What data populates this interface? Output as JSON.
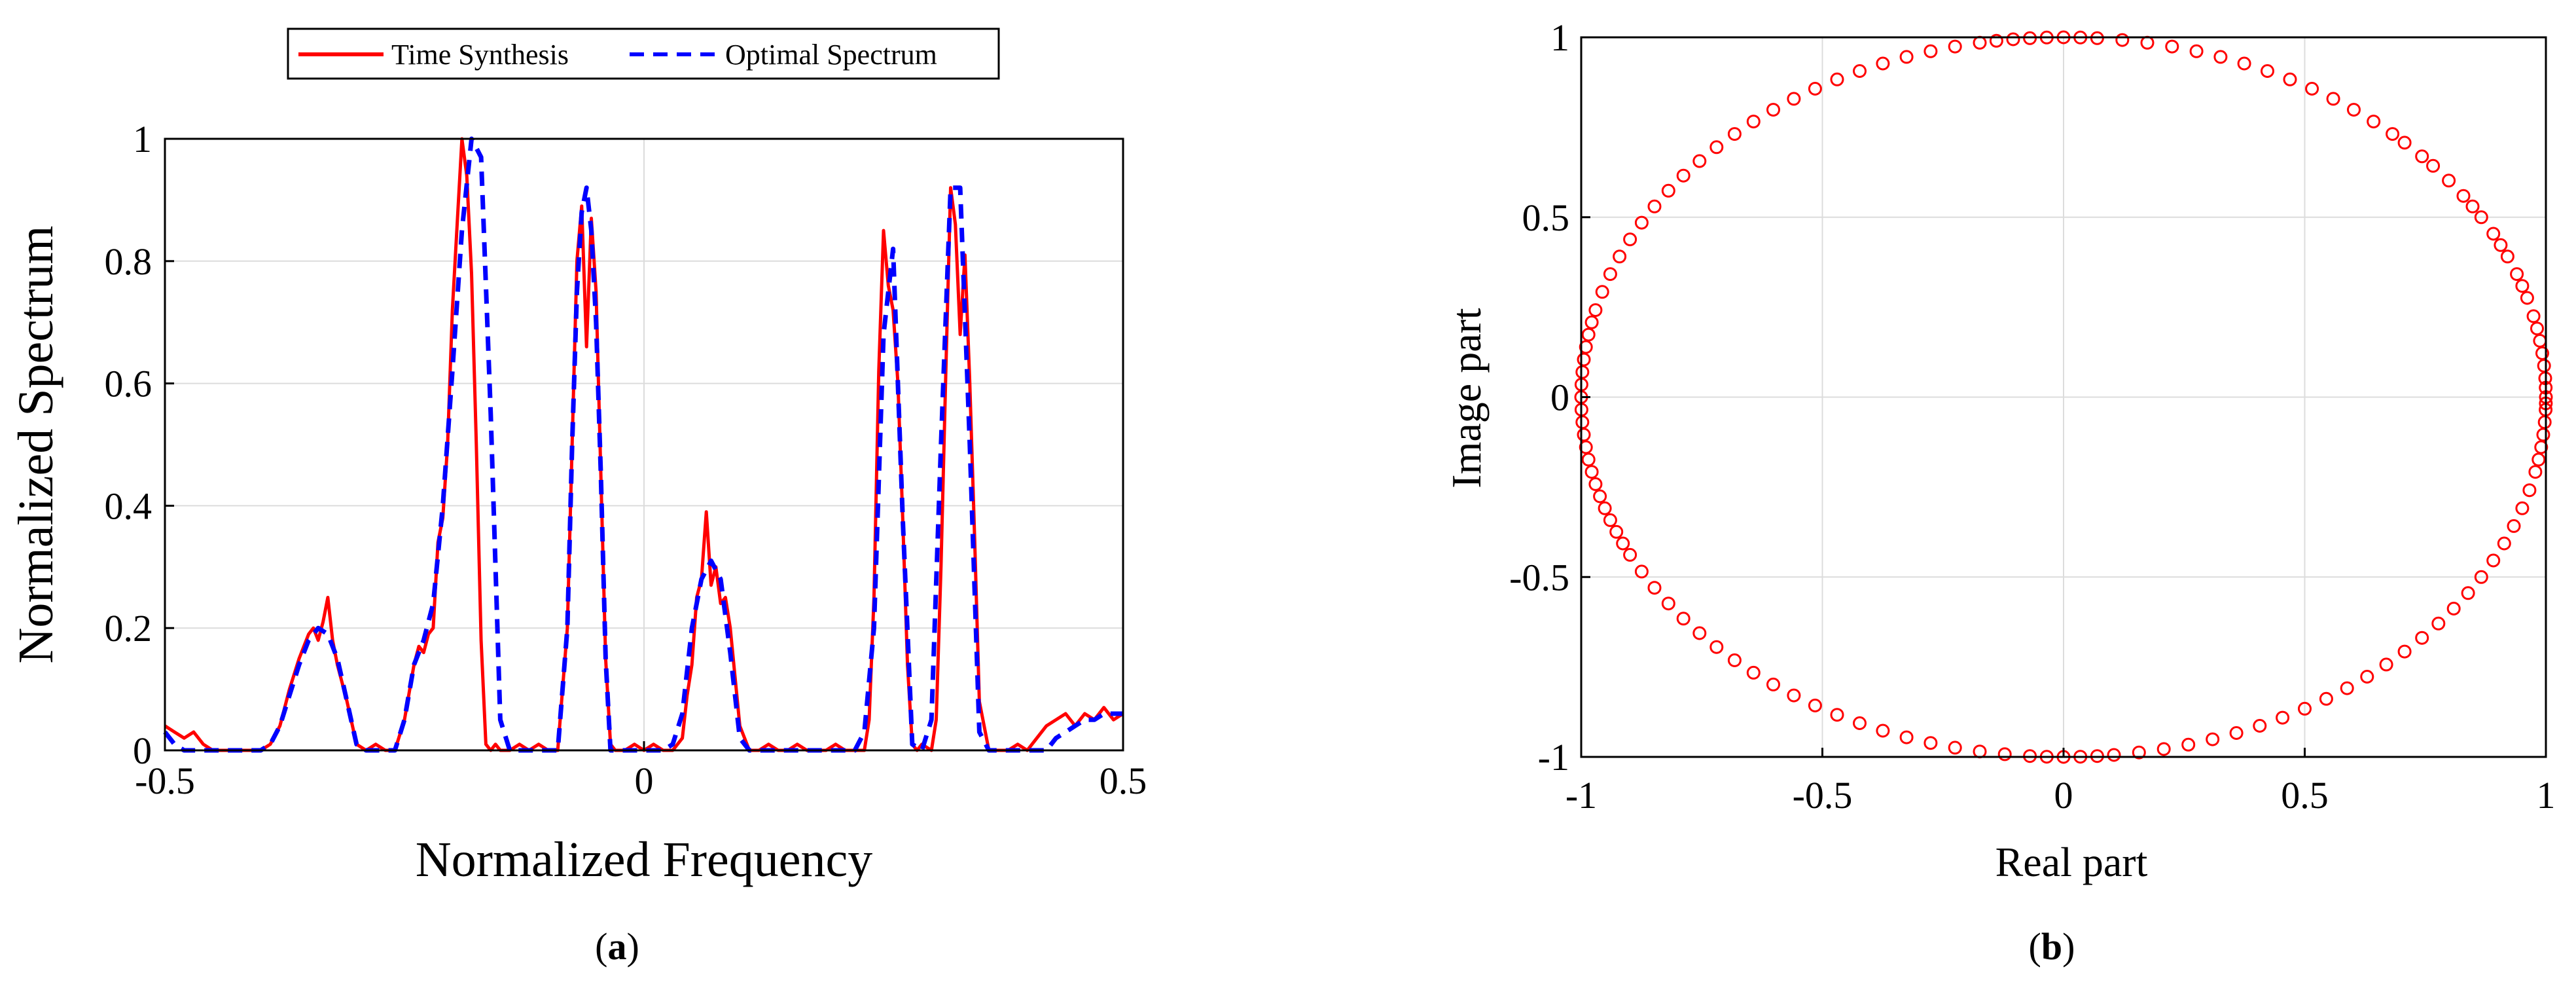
{
  "chart_data": [
    {
      "type": "line",
      "panel_label": "(a)",
      "xlabel": "Normalized Frequency",
      "ylabel": "Normalized Spectrum",
      "xlim": [
        -0.5,
        0.5
      ],
      "ylim": [
        0,
        1
      ],
      "xticks": [
        -0.5,
        0,
        0.5
      ],
      "xtick_labels": [
        "-0.5",
        "0",
        "0.5"
      ],
      "yticks": [
        0,
        0.2,
        0.4,
        0.6,
        0.8,
        1
      ],
      "ytick_labels": [
        "0",
        "0.2",
        "0.4",
        "0.6",
        "0.8",
        "1"
      ],
      "grid": true,
      "legend_position": "top-center-outside",
      "series": [
        {
          "name": "Time Synthesis",
          "color": "#ff0000",
          "style": "solid",
          "x": [
            -0.5,
            -0.49,
            -0.48,
            -0.47,
            -0.46,
            -0.45,
            -0.44,
            -0.43,
            -0.42,
            -0.41,
            -0.4,
            -0.39,
            -0.38,
            -0.37,
            -0.36,
            -0.355,
            -0.35,
            -0.345,
            -0.34,
            -0.335,
            -0.33,
            -0.325,
            -0.32,
            -0.31,
            -0.3,
            -0.29,
            -0.28,
            -0.27,
            -0.26,
            -0.25,
            -0.24,
            -0.235,
            -0.23,
            -0.225,
            -0.22,
            -0.215,
            -0.21,
            -0.205,
            -0.2,
            -0.195,
            -0.19,
            -0.185,
            -0.18,
            -0.175,
            -0.17,
            -0.165,
            -0.16,
            -0.155,
            -0.15,
            -0.14,
            -0.13,
            -0.12,
            -0.11,
            -0.1,
            -0.09,
            -0.08,
            -0.075,
            -0.07,
            -0.065,
            -0.06,
            -0.055,
            -0.05,
            -0.045,
            -0.04,
            -0.035,
            -0.03,
            -0.02,
            -0.01,
            0.0,
            0.01,
            0.02,
            0.03,
            0.04,
            0.045,
            0.05,
            0.055,
            0.06,
            0.065,
            0.07,
            0.075,
            0.08,
            0.085,
            0.09,
            0.095,
            0.1,
            0.11,
            0.12,
            0.13,
            0.14,
            0.15,
            0.16,
            0.17,
            0.18,
            0.19,
            0.2,
            0.21,
            0.22,
            0.23,
            0.235,
            0.24,
            0.245,
            0.25,
            0.255,
            0.26,
            0.265,
            0.27,
            0.275,
            0.28,
            0.285,
            0.29,
            0.3,
            0.305,
            0.31,
            0.315,
            0.32,
            0.325,
            0.33,
            0.335,
            0.34,
            0.345,
            0.35,
            0.36,
            0.37,
            0.38,
            0.39,
            0.4,
            0.41,
            0.42,
            0.43,
            0.44,
            0.45,
            0.46,
            0.47,
            0.48,
            0.49,
            0.5
          ],
          "y": [
            0.04,
            0.03,
            0.02,
            0.03,
            0.01,
            0.0,
            0.0,
            0.0,
            0.0,
            0.0,
            0.0,
            0.01,
            0.04,
            0.1,
            0.15,
            0.17,
            0.19,
            0.2,
            0.18,
            0.21,
            0.25,
            0.18,
            0.14,
            0.08,
            0.01,
            0.0,
            0.01,
            0.0,
            0.0,
            0.05,
            0.14,
            0.17,
            0.16,
            0.19,
            0.2,
            0.34,
            0.38,
            0.5,
            0.72,
            0.86,
            1.0,
            0.94,
            0.78,
            0.5,
            0.18,
            0.01,
            0.0,
            0.01,
            0.0,
            0.0,
            0.01,
            0.0,
            0.01,
            0.0,
            0.0,
            0.2,
            0.5,
            0.8,
            0.89,
            0.66,
            0.87,
            0.75,
            0.45,
            0.15,
            0.01,
            0.0,
            0.0,
            0.01,
            0.0,
            0.01,
            0.0,
            0.0,
            0.02,
            0.09,
            0.14,
            0.25,
            0.28,
            0.39,
            0.27,
            0.3,
            0.24,
            0.25,
            0.2,
            0.12,
            0.04,
            0.0,
            0.0,
            0.01,
            0.0,
            0.0,
            0.01,
            0.0,
            0.0,
            0.0,
            0.01,
            0.0,
            0.0,
            0.0,
            0.05,
            0.25,
            0.62,
            0.85,
            0.76,
            0.72,
            0.6,
            0.38,
            0.14,
            0.01,
            0.0,
            0.01,
            0.0,
            0.05,
            0.3,
            0.62,
            0.92,
            0.86,
            0.68,
            0.81,
            0.6,
            0.35,
            0.08,
            0.0,
            0.0,
            0.0,
            0.01,
            0.0,
            0.02,
            0.04,
            0.05,
            0.06,
            0.04,
            0.06,
            0.05,
            0.07,
            0.05,
            0.06
          ]
        },
        {
          "name": "Optimal Spectrum",
          "color": "#0000ff",
          "style": "dashed",
          "x": [
            -0.5,
            -0.49,
            -0.48,
            -0.47,
            -0.46,
            -0.45,
            -0.44,
            -0.43,
            -0.42,
            -0.41,
            -0.4,
            -0.39,
            -0.38,
            -0.37,
            -0.36,
            -0.35,
            -0.34,
            -0.33,
            -0.32,
            -0.31,
            -0.3,
            -0.29,
            -0.28,
            -0.27,
            -0.26,
            -0.25,
            -0.24,
            -0.23,
            -0.22,
            -0.21,
            -0.2,
            -0.19,
            -0.18,
            -0.17,
            -0.16,
            -0.15,
            -0.14,
            -0.13,
            -0.12,
            -0.11,
            -0.1,
            -0.09,
            -0.08,
            -0.075,
            -0.07,
            -0.065,
            -0.06,
            -0.055,
            -0.05,
            -0.045,
            -0.04,
            -0.035,
            -0.03,
            -0.02,
            -0.01,
            0.0,
            0.01,
            0.02,
            0.03,
            0.04,
            0.05,
            0.06,
            0.07,
            0.08,
            0.09,
            0.1,
            0.11,
            0.12,
            0.13,
            0.14,
            0.15,
            0.16,
            0.17,
            0.18,
            0.19,
            0.2,
            0.21,
            0.22,
            0.23,
            0.24,
            0.25,
            0.26,
            0.27,
            0.28,
            0.29,
            0.3,
            0.31,
            0.32,
            0.33,
            0.34,
            0.35,
            0.36,
            0.37,
            0.38,
            0.39,
            0.4,
            0.41,
            0.42,
            0.43,
            0.44,
            0.45,
            0.46,
            0.47,
            0.48,
            0.49,
            0.5
          ],
          "y": [
            0.03,
            0.01,
            0.0,
            0.0,
            0.0,
            0.0,
            0.0,
            0.0,
            0.0,
            0.0,
            0.0,
            0.01,
            0.04,
            0.09,
            0.14,
            0.18,
            0.2,
            0.19,
            0.15,
            0.08,
            0.01,
            0.0,
            0.0,
            0.0,
            0.0,
            0.05,
            0.14,
            0.18,
            0.24,
            0.4,
            0.62,
            0.85,
            1.0,
            0.97,
            0.55,
            0.05,
            0.0,
            0.0,
            0.0,
            0.0,
            0.0,
            0.0,
            0.2,
            0.5,
            0.75,
            0.88,
            0.92,
            0.85,
            0.7,
            0.45,
            0.15,
            0.0,
            0.0,
            0.0,
            0.0,
            0.0,
            0.0,
            0.0,
            0.01,
            0.06,
            0.2,
            0.28,
            0.31,
            0.28,
            0.16,
            0.02,
            0.0,
            0.0,
            0.0,
            0.0,
            0.0,
            0.0,
            0.0,
            0.0,
            0.0,
            0.0,
            0.0,
            0.0,
            0.03,
            0.2,
            0.68,
            0.82,
            0.38,
            0.01,
            0.0,
            0.05,
            0.5,
            0.92,
            0.92,
            0.5,
            0.03,
            0.0,
            0.0,
            0.0,
            0.0,
            0.0,
            0.0,
            0.0,
            0.02,
            0.03,
            0.04,
            0.05,
            0.05,
            0.06,
            0.06,
            0.06
          ]
        }
      ]
    },
    {
      "type": "scatter",
      "panel_label": "(b)",
      "xlabel": "Real part",
      "ylabel": "Image part",
      "xlim": [
        -1,
        1
      ],
      "ylim": [
        -1,
        1
      ],
      "xticks": [
        -1,
        -0.5,
        0,
        0.5,
        1
      ],
      "xtick_labels": [
        "-1",
        "-0.5",
        "0",
        "0.5",
        "1"
      ],
      "yticks": [
        -1,
        -0.5,
        0,
        0.5,
        1
      ],
      "ytick_labels": [
        "-1",
        "-0.5",
        "0",
        "0.5",
        "1"
      ],
      "grid": true,
      "marker": "circle",
      "color": "#ff0000",
      "description_of_points": "unit-magnitude complex samples",
      "angles_deg": [
        0,
        1.5,
        3,
        5,
        7,
        9,
        11,
        13,
        16,
        18,
        20,
        23,
        25,
        27,
        30,
        32,
        34,
        37,
        40,
        42,
        45,
        47,
        50,
        53,
        56,
        59,
        62,
        65,
        68,
        71,
        74,
        77,
        80,
        83,
        86,
        88,
        90,
        92,
        94,
        96,
        98,
        100,
        103,
        106,
        109,
        112,
        115,
        118,
        121,
        124,
        127,
        130,
        133,
        136,
        139,
        142,
        145,
        148,
        151,
        154,
        157,
        160,
        163,
        166,
        168,
        170,
        172,
        174,
        176,
        178,
        180,
        182,
        184,
        186,
        188,
        190,
        192,
        194,
        196,
        198,
        200,
        202,
        204,
        206,
        209,
        212,
        215,
        218,
        221,
        224,
        227,
        230,
        233,
        236,
        239,
        242,
        245,
        248,
        251,
        254,
        257,
        260,
        263,
        266,
        268,
        270,
        272,
        274,
        276,
        279,
        282,
        285,
        288,
        291,
        294,
        297,
        300,
        303,
        306,
        309,
        312,
        315,
        318,
        321,
        324,
        327,
        330,
        333,
        336,
        339,
        342,
        345,
        348,
        350,
        352,
        354,
        356,
        358,
        359
      ]
    }
  ],
  "legend": {
    "entries": [
      "Time Synthesis",
      "Optimal Spectrum"
    ]
  },
  "captions": {
    "a_letter": "a",
    "b_letter": "b"
  }
}
